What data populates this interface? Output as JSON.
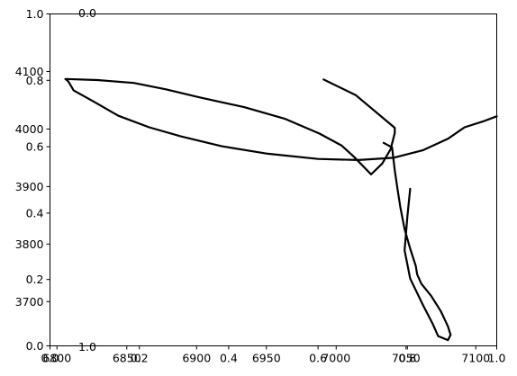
{
  "chart_data": {
    "type": "line",
    "title": "",
    "xlabel": "",
    "ylabel": "",
    "grid": false,
    "legend": "none",
    "overlay_axes": {
      "xlim": [
        0,
        1
      ],
      "ylim": [
        0,
        1
      ],
      "x_ticks": [
        0.0,
        0.2,
        0.4,
        0.6,
        0.8,
        1.0
      ],
      "x_tick_labels": [
        "0.0",
        "0.2",
        "0.4",
        "0.6",
        "0.8",
        "1.0"
      ],
      "y_ticks": [
        0.0,
        0.2,
        0.4,
        0.6,
        0.8,
        1.0
      ],
      "y_tick_labels": [
        "0.0",
        "0.2",
        "0.4",
        "0.6",
        "0.8",
        "1.0"
      ]
    },
    "main_axes": {
      "xlim": [
        6795,
        7115
      ],
      "ylim": [
        3623,
        4200
      ],
      "x_ticks": [
        6800,
        6850,
        6900,
        6950,
        7000,
        7050,
        7100
      ],
      "x_tick_labels": [
        "6800",
        "6850",
        "6900",
        "6950",
        "7000",
        "7050",
        "7100"
      ],
      "y_ticks": [
        3700,
        3800,
        3900,
        4000,
        4100
      ],
      "y_tick_labels": [
        "3700",
        "3800",
        "3900",
        "4000",
        "4100"
      ]
    },
    "extra_text": [
      "0.0",
      "1.0"
    ],
    "series": [
      {
        "color": "#000000",
        "points": [
          [
            6991,
            4086
          ],
          [
            7014,
            4059
          ],
          [
            7042,
            4002
          ],
          [
            7042,
            3993
          ],
          [
            7039,
            3965
          ],
          [
            7033,
            3940
          ],
          [
            7025,
            3921
          ],
          [
            7013,
            3951
          ],
          [
            7004,
            3971
          ],
          [
            6988,
            3992
          ],
          [
            6963,
            4018
          ],
          [
            6934,
            4038
          ],
          [
            6902,
            4055
          ],
          [
            6878,
            4069
          ],
          [
            6855,
            4080
          ],
          [
            6829,
            4085
          ],
          [
            6806,
            4087
          ],
          [
            6808,
            4083
          ],
          [
            6812,
            4067
          ],
          [
            6826,
            4048
          ],
          [
            6844,
            4023
          ],
          [
            6866,
            4003
          ],
          [
            6889,
            3987
          ],
          [
            6918,
            3970
          ],
          [
            6951,
            3957
          ],
          [
            6987,
            3948
          ],
          [
            7016,
            3946
          ],
          [
            7041,
            3950
          ],
          [
            7062,
            3963
          ],
          [
            7080,
            3983
          ],
          [
            7092,
            4003
          ],
          [
            7105,
            4013
          ],
          [
            7115,
            4022
          ]
        ]
      },
      {
        "color": "#000000",
        "points": [
          [
            7034,
            3976
          ],
          [
            7040,
            3968
          ],
          [
            7042,
            3928
          ],
          [
            7044,
            3895
          ],
          [
            7046,
            3863
          ],
          [
            7049,
            3826
          ],
          [
            7053,
            3792
          ],
          [
            7057,
            3762
          ],
          [
            7058,
            3747
          ],
          [
            7061,
            3731
          ],
          [
            7068,
            3710
          ],
          [
            7075,
            3683
          ],
          [
            7080,
            3657
          ],
          [
            7082,
            3642
          ],
          [
            7080,
            3633
          ],
          [
            7073,
            3640
          ],
          [
            7069,
            3662
          ],
          [
            7062,
            3695
          ],
          [
            7053,
            3740
          ],
          [
            7049,
            3789
          ],
          [
            7051,
            3848
          ],
          [
            7053,
            3896
          ]
        ]
      }
    ]
  }
}
